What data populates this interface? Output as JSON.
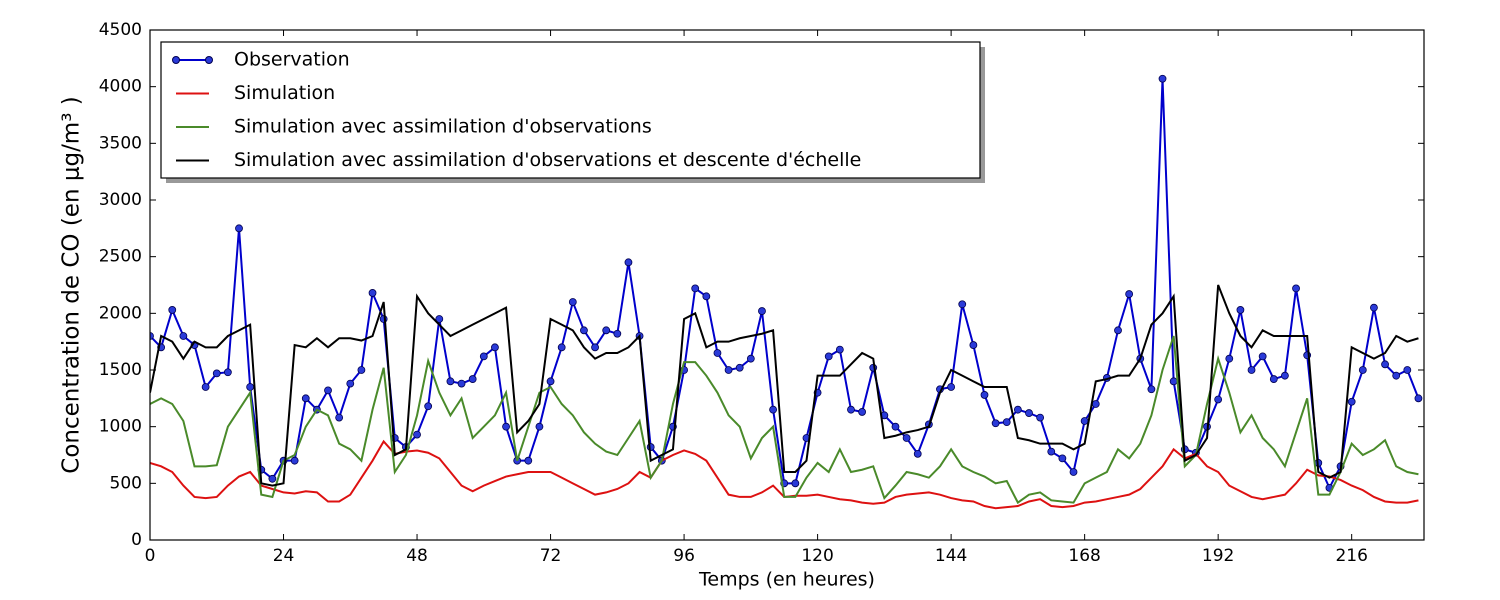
{
  "chart_data": {
    "type": "line",
    "xlabel": "Temps (en heures)",
    "ylabel": "Concentration de CO (en μg/m³ )",
    "x": [
      0,
      2,
      4,
      6,
      8,
      10,
      12,
      14,
      16,
      18,
      20,
      22,
      24,
      26,
      28,
      30,
      32,
      34,
      36,
      38,
      40,
      42,
      44,
      46,
      48,
      50,
      52,
      54,
      56,
      58,
      60,
      62,
      64,
      66,
      68,
      70,
      72,
      74,
      76,
      78,
      80,
      82,
      84,
      86,
      88,
      90,
      92,
      94,
      96,
      98,
      100,
      102,
      104,
      106,
      108,
      110,
      112,
      114,
      116,
      118,
      120,
      122,
      124,
      126,
      128,
      130,
      132,
      134,
      136,
      138,
      140,
      142,
      144,
      146,
      148,
      150,
      152,
      154,
      156,
      158,
      160,
      162,
      164,
      166,
      168,
      170,
      172,
      174,
      176,
      178,
      180,
      182,
      184,
      186,
      188,
      190,
      192,
      194,
      196,
      198,
      200,
      202,
      204,
      206,
      208,
      210,
      212,
      214,
      216,
      218,
      220,
      222,
      224,
      226,
      228
    ],
    "xlim": [
      0,
      229
    ],
    "xticks": [
      0,
      24,
      48,
      72,
      96,
      120,
      144,
      168,
      192,
      216
    ],
    "ylim": [
      0,
      4500
    ],
    "yticks": [
      0,
      500,
      1000,
      1500,
      2000,
      2500,
      3000,
      3500,
      4000,
      4500
    ],
    "legend": "upper left",
    "series": [
      {
        "name": "Observation",
        "color": "#0000cc",
        "marker": true,
        "values": [
          1800,
          1700,
          2030,
          1800,
          1720,
          1350,
          1470,
          1480,
          2750,
          1350,
          620,
          540,
          700,
          700,
          1250,
          1150,
          1320,
          1080,
          1380,
          1500,
          2180,
          1950,
          900,
          820,
          930,
          1180,
          1950,
          1400,
          1380,
          1420,
          1620,
          1700,
          1000,
          700,
          700,
          1000,
          1400,
          1700,
          2100,
          1850,
          1700,
          1850,
          1820,
          2450,
          1800,
          820,
          700,
          1000,
          1500,
          2220,
          2150,
          1650,
          1500,
          1520,
          1600,
          2020,
          1150,
          500,
          500,
          900,
          1300,
          1620,
          1680,
          1150,
          1130,
          1520,
          1100,
          1000,
          900,
          760,
          1020,
          1330,
          1350,
          2080,
          1720,
          1280,
          1030,
          1040,
          1150,
          1120,
          1080,
          780,
          720,
          600,
          1050,
          1200,
          1430,
          1850,
          2170,
          1600,
          1330,
          4070,
          1400,
          800,
          770,
          1000,
          1240,
          1600,
          2030,
          1500,
          1620,
          1420,
          1450,
          2220,
          1630,
          680,
          460,
          650,
          1220,
          1500,
          2050,
          1550,
          1450,
          1500,
          1250
        ]
      },
      {
        "name": "Simulation",
        "color": "#dd1111",
        "values": [
          680,
          650,
          600,
          480,
          380,
          370,
          380,
          480,
          560,
          600,
          480,
          450,
          420,
          410,
          430,
          420,
          340,
          340,
          400,
          550,
          700,
          870,
          760,
          780,
          790,
          770,
          720,
          600,
          480,
          430,
          480,
          520,
          560,
          580,
          600,
          600,
          600,
          550,
          500,
          450,
          400,
          420,
          450,
          500,
          600,
          550,
          700,
          750,
          790,
          760,
          700,
          550,
          400,
          380,
          380,
          420,
          480,
          380,
          390,
          390,
          400,
          380,
          360,
          350,
          330,
          320,
          330,
          380,
          400,
          410,
          420,
          400,
          370,
          350,
          340,
          300,
          280,
          290,
          300,
          340,
          360,
          300,
          290,
          300,
          330,
          340,
          360,
          380,
          400,
          450,
          550,
          650,
          800,
          720,
          760,
          650,
          600,
          480,
          430,
          380,
          360,
          380,
          400,
          500,
          620,
          570,
          560,
          530,
          480,
          440,
          380,
          340,
          330,
          330,
          350
        ]
      },
      {
        "name": "Simulation avec assimilation d'observations",
        "color": "#4a8a2a",
        "values": [
          1200,
          1250,
          1200,
          1050,
          650,
          650,
          660,
          1000,
          1150,
          1300,
          400,
          380,
          700,
          750,
          1000,
          1150,
          1100,
          850,
          800,
          700,
          1150,
          1520,
          600,
          750,
          1100,
          1580,
          1300,
          1100,
          1250,
          900,
          1000,
          1100,
          1300,
          700,
          1000,
          1300,
          1350,
          1200,
          1100,
          950,
          850,
          780,
          750,
          900,
          1050,
          550,
          700,
          1200,
          1570,
          1570,
          1450,
          1300,
          1100,
          1000,
          720,
          900,
          1000,
          380,
          380,
          550,
          680,
          600,
          800,
          600,
          620,
          650,
          370,
          480,
          600,
          580,
          550,
          650,
          800,
          650,
          600,
          560,
          500,
          520,
          330,
          400,
          420,
          350,
          340,
          330,
          500,
          550,
          600,
          800,
          720,
          850,
          1100,
          1500,
          1800,
          650,
          750,
          1200,
          1600,
          1300,
          950,
          1100,
          900,
          800,
          650,
          950,
          1250,
          400,
          400,
          600,
          850,
          750,
          800,
          880,
          650,
          600,
          580
        ]
      },
      {
        "name": "Simulation avec assimilation d'observations et descente d'échelle",
        "color": "#000000",
        "values": [
          1300,
          1800,
          1750,
          1600,
          1750,
          1700,
          1700,
          1800,
          1850,
          1900,
          500,
          480,
          500,
          1720,
          1700,
          1780,
          1700,
          1780,
          1780,
          1760,
          1800,
          2100,
          750,
          800,
          2150,
          2000,
          1900,
          1800,
          1850,
          1900,
          1950,
          2000,
          2050,
          950,
          1050,
          1200,
          1950,
          1900,
          1850,
          1700,
          1600,
          1650,
          1650,
          1700,
          1800,
          700,
          750,
          800,
          1950,
          2000,
          1700,
          1750,
          1750,
          1780,
          1800,
          1820,
          1850,
          600,
          600,
          700,
          1450,
          1450,
          1450,
          1550,
          1650,
          1600,
          900,
          920,
          950,
          970,
          1000,
          1300,
          1500,
          1450,
          1400,
          1350,
          1350,
          1350,
          900,
          880,
          850,
          850,
          850,
          800,
          850,
          1400,
          1420,
          1450,
          1450,
          1600,
          1900,
          2000,
          2150,
          700,
          750,
          900,
          2250,
          2000,
          1800,
          1700,
          1850,
          1800,
          1800,
          1800,
          1800,
          600,
          550,
          600,
          1700,
          1650,
          1600,
          1650,
          1800,
          1750,
          1780
        ]
      }
    ]
  }
}
